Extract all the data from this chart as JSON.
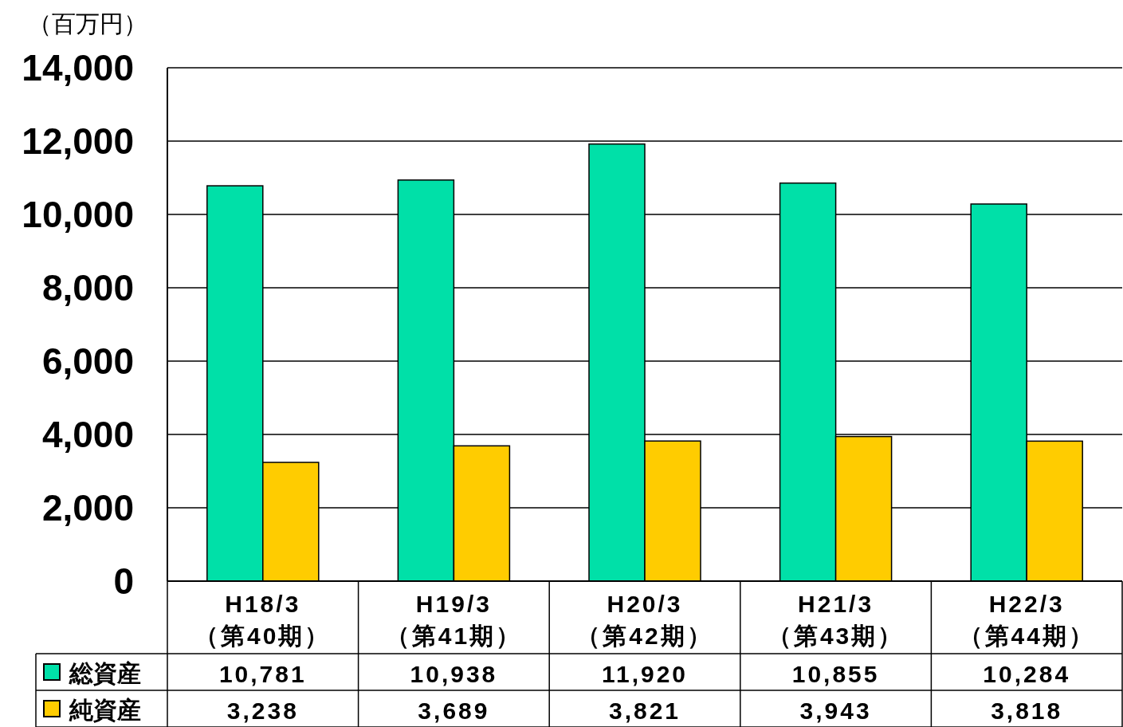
{
  "chart_data": {
    "type": "bar",
    "ylabel": "（百万円）",
    "categories": [
      "H18/3\n（第40期）",
      "H19/3\n（第41期）",
      "H20/3\n（第42期）",
      "H21/3\n（第43期）",
      "H22/3\n（第44期）"
    ],
    "series": [
      {
        "name": "総資産",
        "color": "#00e0a8",
        "values": [
          10781,
          10938,
          11920,
          10855,
          10284
        ],
        "value_labels": [
          "10,781",
          "10,938",
          "11,920",
          "10,855",
          "10,284"
        ]
      },
      {
        "name": "純資産",
        "color": "#ffcc00",
        "values": [
          3238,
          3689,
          3821,
          3943,
          3818
        ],
        "value_labels": [
          "3,238",
          "3,689",
          "3,821",
          "3,943",
          "3,818"
        ]
      }
    ],
    "ylim": [
      0,
      14000
    ],
    "yticks": [
      0,
      {
        "value": 2000,
        "label": "2,000"
      },
      {
        "value": 4000,
        "label": "4,000"
      },
      {
        "value": 6000,
        "label": "6,000"
      },
      {
        "value": 8000,
        "label": "8,000"
      },
      {
        "value": 10000,
        "label": "10,000"
      },
      {
        "value": 12000,
        "label": "12,000"
      },
      {
        "value": 14000,
        "label": "14,000"
      }
    ],
    "grid": "y",
    "legend": "bottom left"
  }
}
